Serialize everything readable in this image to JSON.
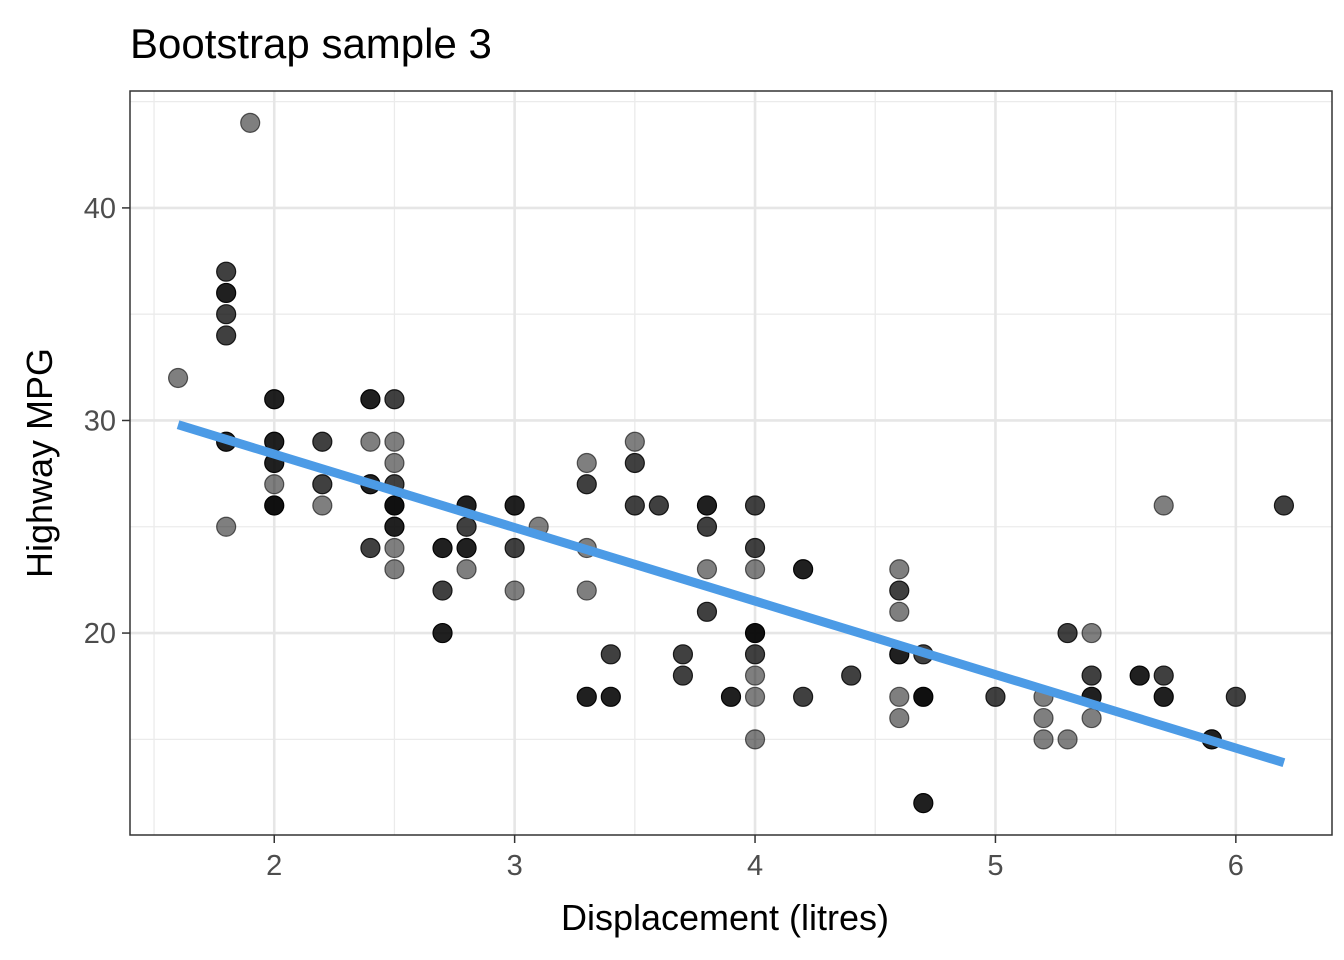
{
  "chart_data": {
    "type": "scatter",
    "title": "Bootstrap sample 3",
    "xlabel": "Displacement (litres)",
    "ylabel": "Highway MPG",
    "xlim": [
      1.4,
      6.4
    ],
    "ylim": [
      10.5,
      45.5
    ],
    "x_ticks": [
      2,
      3,
      4,
      5,
      6
    ],
    "x_tick_labels": [
      "2",
      "3",
      "4",
      "5",
      "6"
    ],
    "y_ticks": [
      20,
      30,
      40
    ],
    "y_tick_labels": [
      "20",
      "30",
      "40"
    ],
    "grid": true,
    "legend": "none",
    "point_color": "#000000",
    "trend_color": "#4c9be6",
    "points": [
      {
        "x": 1.6,
        "y": 32,
        "n": 1
      },
      {
        "x": 1.9,
        "y": 44,
        "n": 1
      },
      {
        "x": 1.8,
        "y": 37,
        "n": 2
      },
      {
        "x": 1.8,
        "y": 36,
        "n": 3
      },
      {
        "x": 1.8,
        "y": 35,
        "n": 2
      },
      {
        "x": 1.8,
        "y": 34,
        "n": 2
      },
      {
        "x": 1.8,
        "y": 29,
        "n": 3
      },
      {
        "x": 1.8,
        "y": 25,
        "n": 1
      },
      {
        "x": 2.0,
        "y": 31,
        "n": 3
      },
      {
        "x": 2.0,
        "y": 29,
        "n": 3
      },
      {
        "x": 2.0,
        "y": 28,
        "n": 3
      },
      {
        "x": 2.0,
        "y": 27,
        "n": 1
      },
      {
        "x": 2.0,
        "y": 26,
        "n": 4
      },
      {
        "x": 2.2,
        "y": 29,
        "n": 2
      },
      {
        "x": 2.2,
        "y": 27,
        "n": 2
      },
      {
        "x": 2.2,
        "y": 26,
        "n": 1
      },
      {
        "x": 2.4,
        "y": 31,
        "n": 3
      },
      {
        "x": 2.4,
        "y": 29,
        "n": 1
      },
      {
        "x": 2.4,
        "y": 27,
        "n": 3
      },
      {
        "x": 2.4,
        "y": 24,
        "n": 2
      },
      {
        "x": 2.5,
        "y": 31,
        "n": 2
      },
      {
        "x": 2.5,
        "y": 29,
        "n": 1
      },
      {
        "x": 2.5,
        "y": 28,
        "n": 1
      },
      {
        "x": 2.5,
        "y": 27,
        "n": 2
      },
      {
        "x": 2.5,
        "y": 26,
        "n": 4
      },
      {
        "x": 2.5,
        "y": 25,
        "n": 3
      },
      {
        "x": 2.5,
        "y": 24,
        "n": 1
      },
      {
        "x": 2.5,
        "y": 23,
        "n": 1
      },
      {
        "x": 2.7,
        "y": 24,
        "n": 3
      },
      {
        "x": 2.7,
        "y": 22,
        "n": 2
      },
      {
        "x": 2.7,
        "y": 20,
        "n": 3
      },
      {
        "x": 2.8,
        "y": 26,
        "n": 3
      },
      {
        "x": 2.8,
        "y": 25,
        "n": 2
      },
      {
        "x": 2.8,
        "y": 24,
        "n": 3
      },
      {
        "x": 2.8,
        "y": 23,
        "n": 1
      },
      {
        "x": 3.0,
        "y": 26,
        "n": 3
      },
      {
        "x": 3.0,
        "y": 24,
        "n": 2
      },
      {
        "x": 3.0,
        "y": 22,
        "n": 1
      },
      {
        "x": 3.1,
        "y": 25,
        "n": 1
      },
      {
        "x": 3.3,
        "y": 28,
        "n": 1
      },
      {
        "x": 3.3,
        "y": 27,
        "n": 2
      },
      {
        "x": 3.3,
        "y": 24,
        "n": 1
      },
      {
        "x": 3.3,
        "y": 22,
        "n": 1
      },
      {
        "x": 3.3,
        "y": 17,
        "n": 3
      },
      {
        "x": 3.4,
        "y": 19,
        "n": 2
      },
      {
        "x": 3.4,
        "y": 17,
        "n": 3
      },
      {
        "x": 3.5,
        "y": 29,
        "n": 1
      },
      {
        "x": 3.5,
        "y": 28,
        "n": 2
      },
      {
        "x": 3.5,
        "y": 26,
        "n": 2
      },
      {
        "x": 3.6,
        "y": 26,
        "n": 2
      },
      {
        "x": 3.7,
        "y": 19,
        "n": 2
      },
      {
        "x": 3.7,
        "y": 18,
        "n": 2
      },
      {
        "x": 3.8,
        "y": 26,
        "n": 3
      },
      {
        "x": 3.8,
        "y": 25,
        "n": 2
      },
      {
        "x": 3.8,
        "y": 23,
        "n": 1
      },
      {
        "x": 3.8,
        "y": 21,
        "n": 2
      },
      {
        "x": 3.9,
        "y": 17,
        "n": 3
      },
      {
        "x": 4.0,
        "y": 26,
        "n": 2
      },
      {
        "x": 4.0,
        "y": 24,
        "n": 2
      },
      {
        "x": 4.0,
        "y": 23,
        "n": 1
      },
      {
        "x": 4.0,
        "y": 20,
        "n": 4
      },
      {
        "x": 4.0,
        "y": 19,
        "n": 2
      },
      {
        "x": 4.0,
        "y": 18,
        "n": 1
      },
      {
        "x": 4.0,
        "y": 17,
        "n": 1
      },
      {
        "x": 4.0,
        "y": 15,
        "n": 1
      },
      {
        "x": 4.2,
        "y": 23,
        "n": 3
      },
      {
        "x": 4.2,
        "y": 17,
        "n": 2
      },
      {
        "x": 4.4,
        "y": 18,
        "n": 2
      },
      {
        "x": 4.6,
        "y": 23,
        "n": 1
      },
      {
        "x": 4.6,
        "y": 22,
        "n": 2
      },
      {
        "x": 4.6,
        "y": 21,
        "n": 1
      },
      {
        "x": 4.6,
        "y": 19,
        "n": 3
      },
      {
        "x": 4.6,
        "y": 17,
        "n": 1
      },
      {
        "x": 4.6,
        "y": 16,
        "n": 1
      },
      {
        "x": 4.7,
        "y": 19,
        "n": 2
      },
      {
        "x": 4.7,
        "y": 17,
        "n": 4
      },
      {
        "x": 4.7,
        "y": 12,
        "n": 3
      },
      {
        "x": 5.0,
        "y": 17,
        "n": 2
      },
      {
        "x": 5.2,
        "y": 17,
        "n": 1
      },
      {
        "x": 5.2,
        "y": 16,
        "n": 1
      },
      {
        "x": 5.2,
        "y": 15,
        "n": 1
      },
      {
        "x": 5.3,
        "y": 20,
        "n": 2
      },
      {
        "x": 5.3,
        "y": 15,
        "n": 1
      },
      {
        "x": 5.4,
        "y": 20,
        "n": 1
      },
      {
        "x": 5.4,
        "y": 18,
        "n": 2
      },
      {
        "x": 5.4,
        "y": 17,
        "n": 3
      },
      {
        "x": 5.4,
        "y": 16,
        "n": 1
      },
      {
        "x": 5.6,
        "y": 18,
        "n": 3
      },
      {
        "x": 5.7,
        "y": 26,
        "n": 1
      },
      {
        "x": 5.7,
        "y": 18,
        "n": 2
      },
      {
        "x": 5.7,
        "y": 17,
        "n": 3
      },
      {
        "x": 5.9,
        "y": 15,
        "n": 3
      },
      {
        "x": 6.0,
        "y": 17,
        "n": 2
      },
      {
        "x": 6.2,
        "y": 26,
        "n": 2
      }
    ],
    "trend_line": {
      "x": [
        1.6,
        6.2
      ],
      "y": [
        29.8,
        13.9
      ]
    }
  }
}
